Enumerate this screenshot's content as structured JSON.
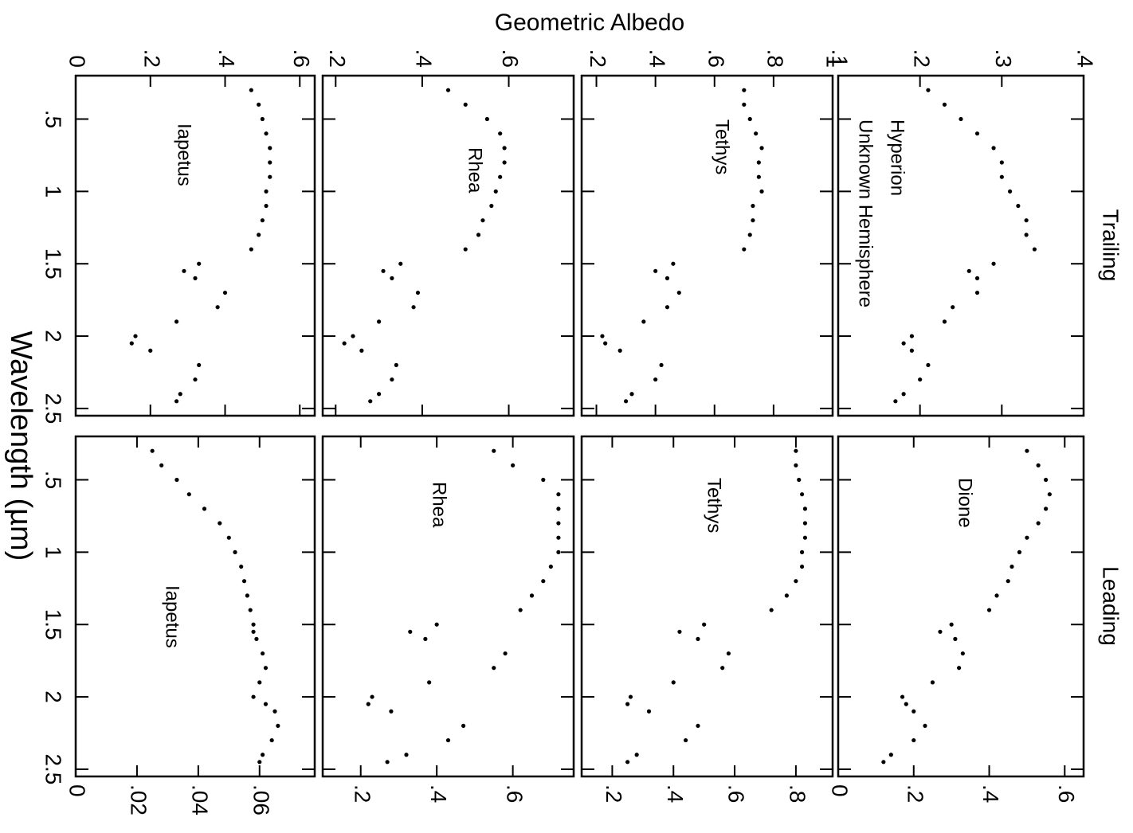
{
  "figure": {
    "ylabel": "Geometric Albedo",
    "xlabel": "Wavelength (µm)",
    "columns": [
      "Trailing",
      "Leading"
    ]
  },
  "chart_data": [
    {
      "type": "scatter",
      "annotations": [
        "Hyperion",
        "Unknown Hemisphere"
      ],
      "x": [
        0.3,
        0.4,
        0.5,
        0.6,
        0.7,
        0.8,
        0.9,
        1.0,
        1.1,
        1.2,
        1.3,
        1.4,
        1.5,
        1.55,
        1.6,
        1.7,
        1.8,
        1.9,
        2.0,
        2.05,
        2.1,
        2.2,
        2.3,
        2.4,
        2.45
      ],
      "values": [
        0.21,
        0.23,
        0.25,
        0.27,
        0.29,
        0.3,
        0.3,
        0.31,
        0.32,
        0.33,
        0.33,
        0.34,
        0.29,
        0.26,
        0.27,
        0.27,
        0.24,
        0.23,
        0.19,
        0.18,
        0.19,
        0.21,
        0.2,
        0.18,
        0.17
      ],
      "ylim": [
        0.1,
        0.4
      ],
      "yticks": [
        {
          "value": 0.1,
          "label": ".1"
        },
        {
          "value": 0.2,
          "label": ".2"
        },
        {
          "value": 0.3,
          "label": ".3"
        },
        {
          "value": 0.4,
          "label": ".4"
        }
      ]
    },
    {
      "type": "scatter",
      "annotations": [
        "Dione"
      ],
      "x": [
        0.3,
        0.4,
        0.5,
        0.6,
        0.7,
        0.8,
        0.9,
        1.0,
        1.1,
        1.2,
        1.3,
        1.4,
        1.5,
        1.55,
        1.6,
        1.7,
        1.8,
        1.9,
        2.0,
        2.05,
        2.1,
        2.2,
        2.3,
        2.4,
        2.45
      ],
      "values": [
        0.5,
        0.53,
        0.55,
        0.56,
        0.55,
        0.53,
        0.5,
        0.48,
        0.46,
        0.45,
        0.42,
        0.4,
        0.3,
        0.27,
        0.31,
        0.33,
        0.32,
        0.25,
        0.17,
        0.18,
        0.2,
        0.23,
        0.2,
        0.14,
        0.12
      ],
      "ylim": [
        0,
        0.65
      ],
      "yticks": [
        0,
        {
          "value": 0.2,
          "label": ".2"
        },
        {
          "value": 0.4,
          "label": ".4"
        },
        {
          "value": 0.6,
          "label": ".6"
        }
      ]
    },
    {
      "type": "scatter",
      "annotations": [
        "Tethys"
      ],
      "x": [
        0.3,
        0.4,
        0.5,
        0.6,
        0.7,
        0.8,
        0.9,
        1.0,
        1.1,
        1.2,
        1.3,
        1.4,
        1.5,
        1.55,
        1.6,
        1.7,
        1.8,
        1.9,
        2.0,
        2.05,
        2.1,
        2.2,
        2.3,
        2.4,
        2.45
      ],
      "values": [
        0.7,
        0.7,
        0.72,
        0.74,
        0.76,
        0.75,
        0.75,
        0.76,
        0.73,
        0.73,
        0.72,
        0.7,
        0.46,
        0.4,
        0.44,
        0.48,
        0.44,
        0.36,
        0.22,
        0.23,
        0.28,
        0.42,
        0.4,
        0.32,
        0.3
      ],
      "ylim": [
        0.15,
        1
      ],
      "yticks": [
        {
          "value": 0.2,
          "label": ".2"
        },
        {
          "value": 0.4,
          "label": ".4"
        },
        {
          "value": 0.6,
          "label": ".6"
        },
        {
          "value": 0.8,
          "label": ".8"
        },
        1
      ]
    },
    {
      "type": "scatter",
      "annotations": [
        "Tethys"
      ],
      "x": [
        0.3,
        0.4,
        0.5,
        0.6,
        0.7,
        0.8,
        0.9,
        1.0,
        1.1,
        1.2,
        1.3,
        1.4,
        1.5,
        1.55,
        1.6,
        1.7,
        1.8,
        1.9,
        2.0,
        2.05,
        2.1,
        2.2,
        2.3,
        2.4,
        2.45
      ],
      "values": [
        0.8,
        0.8,
        0.81,
        0.82,
        0.83,
        0.83,
        0.83,
        0.82,
        0.82,
        0.8,
        0.77,
        0.72,
        0.5,
        0.42,
        0.48,
        0.58,
        0.56,
        0.4,
        0.26,
        0.25,
        0.32,
        0.48,
        0.44,
        0.28,
        0.25
      ],
      "ylim": [
        0.1,
        0.92
      ],
      "yticks": [
        {
          "value": 0.2,
          "label": ".2"
        },
        {
          "value": 0.4,
          "label": ".4"
        },
        {
          "value": 0.6,
          "label": ".6"
        },
        {
          "value": 0.8,
          "label": ".8"
        }
      ]
    },
    {
      "type": "scatter",
      "annotations": [
        "Rhea"
      ],
      "x": [
        0.3,
        0.4,
        0.5,
        0.6,
        0.7,
        0.8,
        0.9,
        1.0,
        1.1,
        1.2,
        1.3,
        1.4,
        1.5,
        1.55,
        1.6,
        1.7,
        1.8,
        1.9,
        2.0,
        2.05,
        2.1,
        2.2,
        2.3,
        2.4,
        2.45
      ],
      "values": [
        0.46,
        0.5,
        0.55,
        0.58,
        0.59,
        0.59,
        0.58,
        0.57,
        0.56,
        0.54,
        0.53,
        0.5,
        0.35,
        0.31,
        0.33,
        0.39,
        0.38,
        0.3,
        0.24,
        0.22,
        0.26,
        0.34,
        0.33,
        0.3,
        0.28
      ],
      "ylim": [
        0.17,
        0.75
      ],
      "yticks": [
        {
          "value": 0.2,
          "label": ".2"
        },
        {
          "value": 0.4,
          "label": ".4"
        },
        {
          "value": 0.6,
          "label": ".6"
        }
      ]
    },
    {
      "type": "scatter",
      "annotations": [
        "Rhea"
      ],
      "x": [
        0.3,
        0.4,
        0.5,
        0.6,
        0.7,
        0.8,
        0.9,
        1.0,
        1.1,
        1.2,
        1.3,
        1.4,
        1.5,
        1.55,
        1.6,
        1.7,
        1.8,
        1.9,
        2.0,
        2.05,
        2.1,
        2.2,
        2.3,
        2.4,
        2.45
      ],
      "values": [
        0.55,
        0.6,
        0.68,
        0.72,
        0.72,
        0.72,
        0.72,
        0.72,
        0.7,
        0.68,
        0.65,
        0.62,
        0.4,
        0.33,
        0.37,
        0.58,
        0.55,
        0.38,
        0.23,
        0.22,
        0.28,
        0.47,
        0.43,
        0.32,
        0.27
      ],
      "ylim": [
        0.1,
        0.76
      ],
      "yticks": [
        {
          "value": 0.2,
          "label": ".2"
        },
        {
          "value": 0.4,
          "label": ".4"
        },
        {
          "value": 0.6,
          "label": ".6"
        }
      ]
    },
    {
      "type": "scatter",
      "annotations": [
        "Iapetus"
      ],
      "x": [
        0.3,
        0.4,
        0.5,
        0.6,
        0.7,
        0.8,
        0.9,
        1.0,
        1.1,
        1.2,
        1.3,
        1.4,
        1.5,
        1.55,
        1.6,
        1.7,
        1.8,
        1.9,
        2.0,
        2.05,
        2.1,
        2.2,
        2.3,
        2.4,
        2.45
      ],
      "values": [
        0.47,
        0.49,
        0.5,
        0.51,
        0.52,
        0.52,
        0.52,
        0.51,
        0.51,
        0.5,
        0.49,
        0.47,
        0.33,
        0.29,
        0.32,
        0.4,
        0.38,
        0.27,
        0.16,
        0.15,
        0.2,
        0.33,
        0.32,
        0.28,
        0.27
      ],
      "xlim": [
        0.2,
        2.55
      ],
      "xticks": [
        {
          "value": 0.5,
          "label": ".5"
        },
        1,
        1.5,
        2,
        2.5
      ],
      "ylim": [
        0,
        0.64
      ],
      "yticks": [
        0,
        {
          "value": 0.2,
          "label": ".2"
        },
        {
          "value": 0.4,
          "label": ".4"
        },
        {
          "value": 0.6,
          "label": ".6"
        }
      ]
    },
    {
      "type": "scatter",
      "annotations": [
        "Iapetus"
      ],
      "x": [
        0.3,
        0.4,
        0.5,
        0.6,
        0.7,
        0.8,
        0.9,
        1.0,
        1.1,
        1.2,
        1.3,
        1.4,
        1.5,
        1.55,
        1.6,
        1.7,
        1.8,
        1.9,
        2.0,
        2.05,
        2.1,
        2.2,
        2.3,
        2.4,
        2.45
      ],
      "values": [
        0.025,
        0.028,
        0.033,
        0.037,
        0.042,
        0.047,
        0.05,
        0.052,
        0.054,
        0.055,
        0.056,
        0.057,
        0.058,
        0.058,
        0.059,
        0.061,
        0.062,
        0.06,
        0.058,
        0.062,
        0.065,
        0.066,
        0.064,
        0.061,
        0.06
      ],
      "xlim": [
        0.2,
        2.55
      ],
      "xticks": [
        {
          "value": 0.5,
          "label": ".5"
        },
        1,
        1.5,
        2,
        2.5
      ],
      "ylim": [
        0,
        0.078
      ],
      "yticks": [
        0,
        {
          "value": 0.02,
          "label": ".02"
        },
        {
          "value": 0.04,
          "label": ".04"
        },
        {
          "value": 0.06,
          "label": ".06"
        }
      ]
    }
  ]
}
